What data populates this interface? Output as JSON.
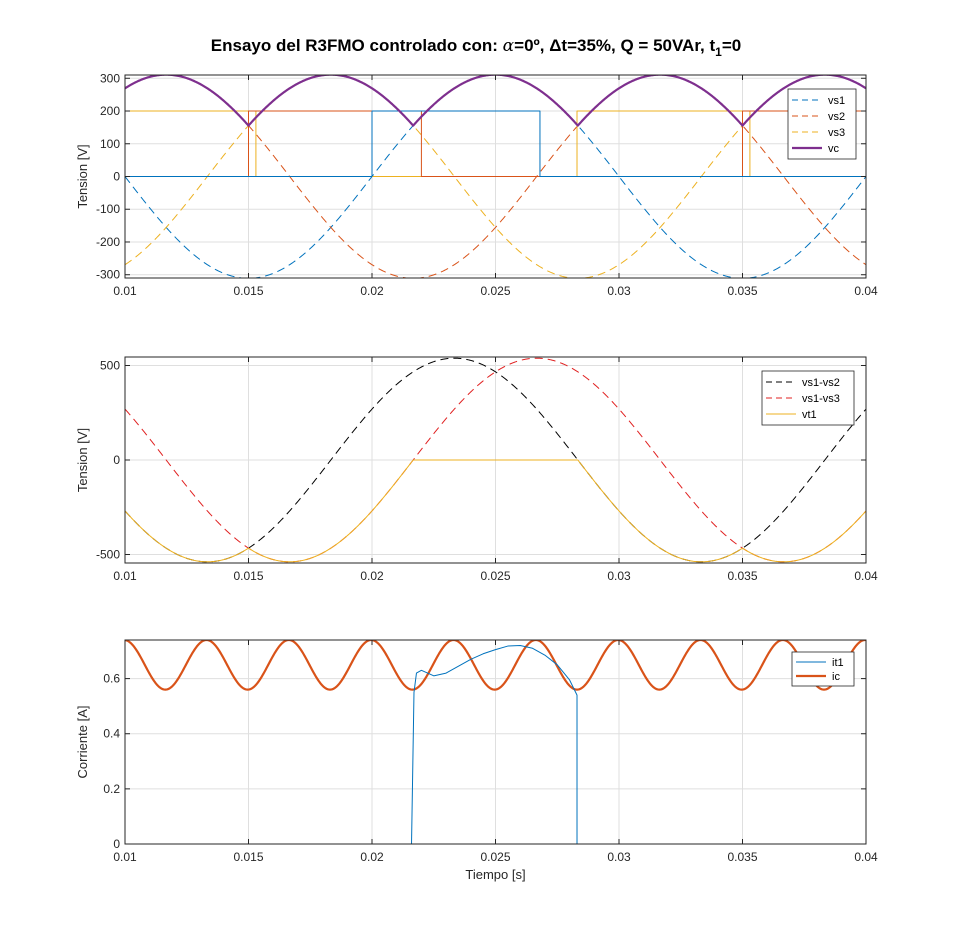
{
  "figure_title": {
    "part1": "Ensayo del R3FMO controlado con: ",
    "alpha_symbol": "α",
    "part2": "=0º, ",
    "delta_symbol": "Δ",
    "part3": "t=35%, Q = 50VAr, t",
    "subscript": "1",
    "part4": "=0"
  },
  "chart_data": [
    {
      "type": "line",
      "title": "Ensayo del R3FMO controlado con: α=0º, Δt=35%, Q = 50VAr, t1=0",
      "xlabel": "",
      "ylabel": "Tension [V]",
      "xlim": [
        0.01,
        0.04
      ],
      "ylim": [
        -310,
        310
      ],
      "xticks": [
        0.01,
        0.015,
        0.02,
        0.025,
        0.03,
        0.035,
        0.04
      ],
      "xticklabels": [
        "0.01",
        "0.015",
        "0.02",
        "0.025",
        "0.03",
        "0.035",
        "0.04"
      ],
      "yticks": [
        -300,
        -200,
        -100,
        0,
        100,
        200,
        300
      ],
      "yticklabels": [
        "-300",
        "-200",
        "-100",
        "0",
        "100",
        "200",
        "300"
      ],
      "grid": true,
      "legend_position": "top-right",
      "series": [
        {
          "name": "vs1",
          "color": "#0072BD",
          "style": "dashed",
          "formula": "311*sin(2*pi*50*t)",
          "amplitude": 311,
          "phase_deg": 0
        },
        {
          "name": "vs2",
          "color": "#D95319",
          "style": "dashed",
          "formula": "311*sin(2*pi*50*t-120deg)",
          "amplitude": 311,
          "phase_deg": -120
        },
        {
          "name": "vs3",
          "color": "#EDB120",
          "style": "dashed",
          "formula": "311*sin(2*pi*50*t+120deg)",
          "amplitude": 311,
          "phase_deg": 120
        },
        {
          "name": "vc",
          "color": "#7E2F8E",
          "style": "solid-thick",
          "formula": "max(vs1,vs2,vs3)"
        }
      ],
      "gate_pulses": [
        {
          "series": "vs1",
          "color": "#0072BD",
          "level": 200,
          "intervals": [
            [
              0.02,
              0.0268
            ],
            [
              0.04,
              0.0401
            ]
          ]
        },
        {
          "series": "vs2",
          "color": "#D95319",
          "level": 200,
          "intervals": [
            [
              0.015,
              0.022
            ],
            [
              0.035,
              0.0401
            ]
          ]
        },
        {
          "series": "vs3",
          "color": "#EDB120",
          "level": 200,
          "intervals": [
            [
              0.0099,
              0.0153
            ],
            [
              0.0283,
              0.0353
            ]
          ]
        }
      ]
    },
    {
      "type": "line",
      "xlabel": "",
      "ylabel": "Tension [V]",
      "xlim": [
        0.01,
        0.04
      ],
      "ylim": [
        -545,
        545
      ],
      "xticks": [
        0.01,
        0.015,
        0.02,
        0.025,
        0.03,
        0.035,
        0.04
      ],
      "xticklabels": [
        "0.01",
        "0.015",
        "0.02",
        "0.025",
        "0.03",
        "0.035",
        "0.04"
      ],
      "yticks": [
        -500,
        0,
        500
      ],
      "yticklabels": [
        "-500",
        "0",
        "500"
      ],
      "grid": true,
      "legend_position": "top-right",
      "series": [
        {
          "name": "vs1-vs2",
          "color": "#000000",
          "style": "dashed",
          "formula": "vs1-vs2",
          "amplitude": 539
        },
        {
          "name": "vs1-vs3",
          "color": "#E02020",
          "style": "dashed",
          "formula": "vs1-vs3",
          "amplitude": 539
        },
        {
          "name": "vt1",
          "color": "#EDB120",
          "style": "solid",
          "formula": "vs1-vc, 0 while conducting",
          "conduction_interval": [
            0.0217,
            0.0283
          ]
        }
      ]
    },
    {
      "type": "line",
      "xlabel": "Tiempo [s]",
      "ylabel": "Corriente [A]",
      "xlim": [
        0.01,
        0.04
      ],
      "ylim": [
        0,
        0.74
      ],
      "xticks": [
        0.01,
        0.015,
        0.02,
        0.025,
        0.03,
        0.035,
        0.04
      ],
      "xticklabels": [
        "0.01",
        "0.015",
        "0.02",
        "0.025",
        "0.03",
        "0.035",
        "0.04"
      ],
      "yticks": [
        0,
        0.2,
        0.4,
        0.6
      ],
      "yticklabels": [
        "0",
        "0.2",
        "0.4",
        "0.6"
      ],
      "grid": true,
      "legend_position": "top-right",
      "series": [
        {
          "name": "it1",
          "color": "#0072BD",
          "style": "solid",
          "x": [
            0.01,
            0.0216,
            0.0217,
            0.0218,
            0.022,
            0.0225,
            0.023,
            0.0235,
            0.024,
            0.0245,
            0.025,
            0.0255,
            0.026,
            0.0265,
            0.027,
            0.0275,
            0.028,
            0.0283,
            0.0283,
            0.04
          ],
          "values": [
            0,
            0,
            0.55,
            0.62,
            0.63,
            0.61,
            0.62,
            0.645,
            0.67,
            0.69,
            0.705,
            0.718,
            0.72,
            0.71,
            0.685,
            0.65,
            0.595,
            0.54,
            0,
            0
          ]
        },
        {
          "name": "ic",
          "color": "#D95319",
          "style": "solid-thick",
          "formula": "0.65 + 0.09*cos(6*2*pi*50*(t-0.0033))",
          "min": 0.56,
          "max": 0.74
        }
      ]
    }
  ]
}
